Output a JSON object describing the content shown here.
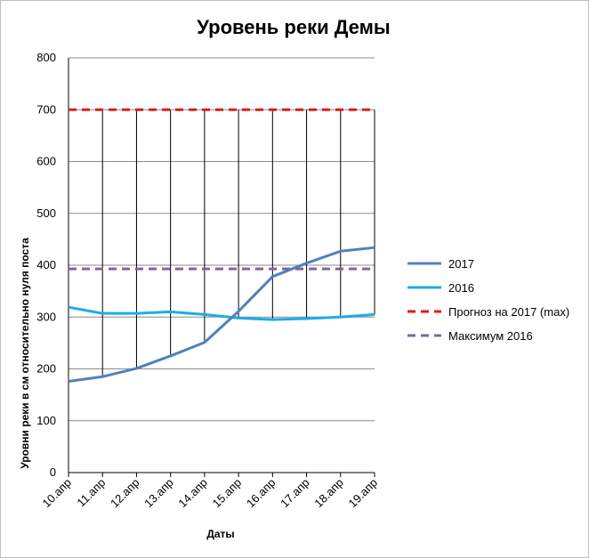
{
  "chart_data": {
    "type": "line",
    "title": "Уровень реки Демы",
    "xlabel": "Даты",
    "ylabel": "Уровни реки в см относительно нуля поста",
    "categories": [
      "10.апр",
      "11.апр",
      "12.апр",
      "13.апр",
      "14.апр",
      "15.апр",
      "16.апр",
      "17.апр",
      "18.апр",
      "19.апр"
    ],
    "ylim": [
      0,
      800
    ],
    "yticks": [
      "0",
      "100",
      "200",
      "300",
      "400",
      "500",
      "600",
      "700",
      "800"
    ],
    "grid": true,
    "legend_position": "right",
    "series": [
      {
        "name": "2017",
        "color": "#4f81bd",
        "style": "solid",
        "values": [
          176,
          185,
          201,
          225,
          251,
          311,
          378,
          404,
          427,
          434
        ]
      },
      {
        "name": "2016",
        "color": "#1cade4",
        "style": "solid",
        "values": [
          319,
          307,
          307,
          310,
          305,
          298,
          295,
          297,
          300,
          305
        ]
      },
      {
        "name": "Прогноз на 2017 (max)",
        "color": "#e01b1b",
        "style": "dashed",
        "values": [
          700,
          700,
          700,
          700,
          700,
          700,
          700,
          700,
          700,
          700
        ]
      },
      {
        "name": "Максимум 2016",
        "color": "#8064a2",
        "style": "dashed",
        "values": [
          393,
          393,
          393,
          393,
          393,
          393,
          393,
          393,
          393,
          393
        ]
      }
    ]
  }
}
